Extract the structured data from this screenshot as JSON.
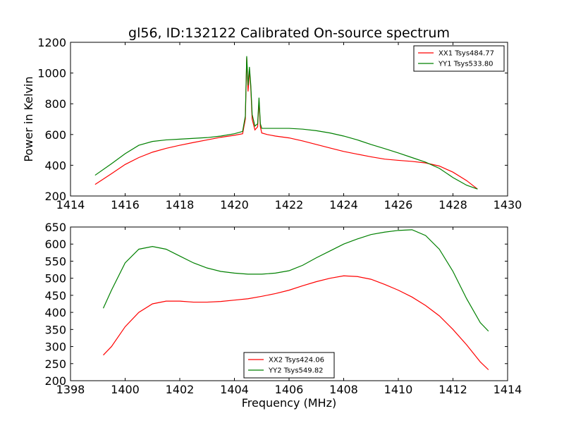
{
  "chart_data": [
    {
      "type": "line",
      "title": "gl56, ID:132122 Calibrated On-source spectrum",
      "xlabel": "",
      "ylabel": "Power in Kelvin",
      "xlim": [
        1414,
        1430
      ],
      "ylim": [
        200,
        1200
      ],
      "xticks": [
        1414,
        1416,
        1418,
        1420,
        1422,
        1424,
        1426,
        1428,
        1430
      ],
      "yticks": [
        200,
        400,
        600,
        800,
        1000,
        1200
      ],
      "grid": false,
      "legend_position": "top-right",
      "series": [
        {
          "name": "XX1 Tsys484.77",
          "color": "#ff0000",
          "x": [
            1414.9,
            1415.5,
            1416,
            1416.5,
            1417,
            1417.5,
            1418,
            1418.5,
            1419,
            1419.5,
            1420,
            1420.3,
            1420.4,
            1420.45,
            1420.5,
            1420.55,
            1420.6,
            1420.65,
            1420.75,
            1420.85,
            1420.9,
            1420.95,
            1421.0,
            1421.2,
            1421.5,
            1422,
            1422.5,
            1423,
            1423.5,
            1424,
            1424.5,
            1425,
            1425.5,
            1426,
            1426.5,
            1427,
            1427.5,
            1428,
            1428.5,
            1428.9
          ],
          "y": [
            275,
            345,
            405,
            450,
            485,
            510,
            530,
            548,
            565,
            582,
            595,
            605,
            700,
            1100,
            880,
            1020,
            900,
            700,
            630,
            650,
            820,
            650,
            610,
            600,
            590,
            578,
            558,
            535,
            512,
            490,
            472,
            455,
            440,
            432,
            425,
            415,
            395,
            355,
            300,
            245
          ]
        },
        {
          "name": "YY1 Tsys533.80",
          "color": "#008000",
          "x": [
            1414.9,
            1415.5,
            1416,
            1416.5,
            1417,
            1417.5,
            1418,
            1418.5,
            1419,
            1419.5,
            1420,
            1420.3,
            1420.4,
            1420.45,
            1420.5,
            1420.55,
            1420.6,
            1420.65,
            1420.75,
            1420.85,
            1420.9,
            1420.95,
            1421.0,
            1421.2,
            1421.5,
            1422,
            1422.5,
            1423,
            1423.5,
            1424,
            1424.5,
            1425,
            1425.5,
            1426,
            1426.5,
            1427,
            1427.5,
            1428,
            1428.5,
            1428.9
          ],
          "y": [
            335,
            410,
            475,
            530,
            555,
            565,
            570,
            575,
            580,
            590,
            605,
            620,
            720,
            1110,
            920,
            1040,
            920,
            730,
            655,
            670,
            840,
            670,
            640,
            640,
            640,
            640,
            635,
            625,
            610,
            590,
            565,
            535,
            508,
            480,
            450,
            420,
            380,
            320,
            270,
            245
          ]
        }
      ]
    },
    {
      "type": "line",
      "title": "",
      "xlabel": "Frequency (MHz)",
      "ylabel": "",
      "xlim": [
        1398,
        1414
      ],
      "ylim": [
        200,
        650
      ],
      "xticks": [
        1398,
        1400,
        1402,
        1404,
        1406,
        1408,
        1410,
        1412,
        1414
      ],
      "yticks": [
        200,
        250,
        300,
        350,
        400,
        450,
        500,
        550,
        600,
        650
      ],
      "grid": false,
      "legend_position": "bottom-center",
      "series": [
        {
          "name": "XX2 Tsys424.06",
          "color": "#ff0000",
          "x": [
            1399.2,
            1399.5,
            1400,
            1400.5,
            1401,
            1401.5,
            1402,
            1402.5,
            1403,
            1403.5,
            1404,
            1404.5,
            1405,
            1405.5,
            1406,
            1406.5,
            1407,
            1407.5,
            1408,
            1408.5,
            1409,
            1409.5,
            1410,
            1410.5,
            1411,
            1411.5,
            1412,
            1412.5,
            1413,
            1413.3
          ],
          "y": [
            275,
            300,
            358,
            400,
            425,
            433,
            433,
            430,
            430,
            432,
            436,
            440,
            447,
            455,
            465,
            478,
            490,
            500,
            507,
            505,
            497,
            482,
            465,
            445,
            420,
            390,
            350,
            305,
            255,
            232
          ]
        },
        {
          "name": "YY2 Tsys549.82",
          "color": "#008000",
          "x": [
            1399.2,
            1399.5,
            1400,
            1400.5,
            1401,
            1401.5,
            1402,
            1402.5,
            1403,
            1403.5,
            1404,
            1404.5,
            1405,
            1405.5,
            1406,
            1406.5,
            1407,
            1407.5,
            1408,
            1408.5,
            1409,
            1409.5,
            1410,
            1410.5,
            1411,
            1411.5,
            1412,
            1412.5,
            1413,
            1413.3
          ],
          "y": [
            412,
            465,
            545,
            585,
            593,
            585,
            565,
            545,
            530,
            520,
            515,
            512,
            512,
            515,
            522,
            538,
            560,
            580,
            600,
            615,
            628,
            635,
            640,
            642,
            625,
            585,
            520,
            440,
            370,
            345
          ]
        }
      ]
    }
  ]
}
